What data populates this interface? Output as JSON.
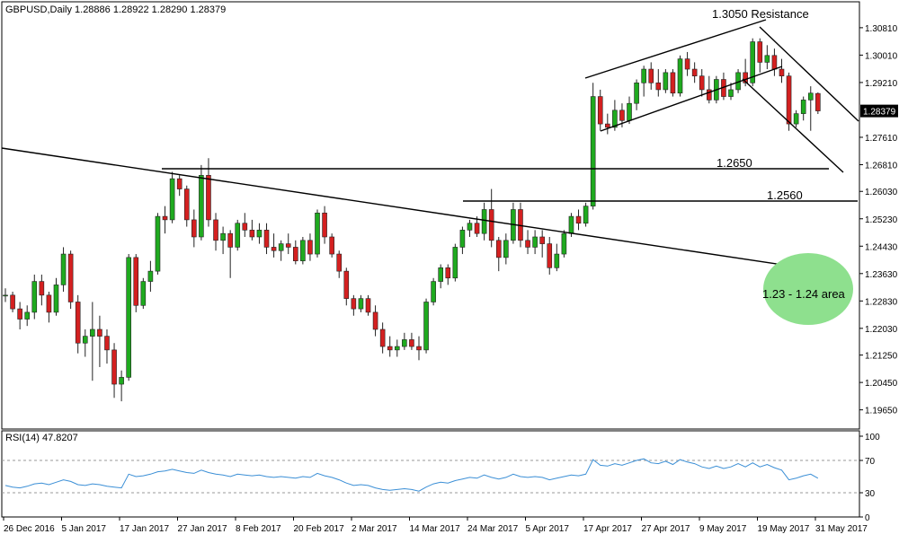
{
  "header": {
    "symbol_info": "GBPUSD,Daily  1.28886 1.28922 1.28290 1.28379",
    "rsi_info": "RSI(14) 47.8207"
  },
  "colors": {
    "bull": "#1faa1f",
    "bear": "#d42020",
    "wick": "#222222",
    "rsi_line": "#3b8fd6",
    "ellipse": "#8ee08e",
    "price_tag_bg": "#000000",
    "price_tag_fg": "#ffffff"
  },
  "chart_data": [
    {
      "type": "candlestick",
      "title": "GBPUSD,Daily",
      "ohlc_header": "1.28886 1.28922 1.28290 1.28379",
      "ylim": [
        1.193,
        1.312
      ],
      "price_ticks": [
        "1.30810",
        "1.30010",
        "1.29210",
        "1.28379",
        "1.27610",
        "1.26810",
        "1.26030",
        "1.25230",
        "1.24430",
        "1.23630",
        "1.22830",
        "1.22030",
        "1.21250",
        "1.20450",
        "1.19650"
      ],
      "current_price": "1.28379",
      "date_labels": [
        "26 Dec 2016",
        "5 Jan 2017",
        "17 Jan 2017",
        "27 Jan 2017",
        "8 Feb 2017",
        "20 Feb 2017",
        "2 Mar 2017",
        "14 Mar 2017",
        "24 Mar 2017",
        "5 Apr 2017",
        "17 Apr 2017",
        "27 Apr 2017",
        "9 May 2017",
        "19 May 2017",
        "31 May 2017"
      ],
      "candles": [
        [
          1.23,
          1.232,
          1.228,
          1.23
        ],
        [
          1.23,
          1.231,
          1.225,
          1.226
        ],
        [
          1.226,
          1.228,
          1.22,
          1.223
        ],
        [
          1.223,
          1.227,
          1.221,
          1.225
        ],
        [
          1.225,
          1.236,
          1.223,
          1.234
        ],
        [
          1.234,
          1.236,
          1.227,
          1.23
        ],
        [
          1.23,
          1.231,
          1.222,
          1.225
        ],
        [
          1.225,
          1.235,
          1.224,
          1.233
        ],
        [
          1.233,
          1.244,
          1.231,
          1.242
        ],
        [
          1.242,
          1.243,
          1.226,
          1.228
        ],
        [
          1.228,
          1.23,
          1.213,
          1.216
        ],
        [
          1.216,
          1.22,
          1.212,
          1.218
        ],
        [
          1.218,
          1.228,
          1.205,
          1.22
        ],
        [
          1.22,
          1.224,
          1.209,
          1.218
        ],
        [
          1.218,
          1.22,
          1.21,
          1.214
        ],
        [
          1.214,
          1.216,
          1.2,
          1.204
        ],
        [
          1.204,
          1.208,
          1.199,
          1.206
        ],
        [
          1.206,
          1.242,
          1.205,
          1.241
        ],
        [
          1.241,
          1.242,
          1.225,
          1.227
        ],
        [
          1.227,
          1.235,
          1.226,
          1.234
        ],
        [
          1.234,
          1.24,
          1.231,
          1.237
        ],
        [
          1.237,
          1.254,
          1.236,
          1.253
        ],
        [
          1.253,
          1.256,
          1.248,
          1.252
        ],
        [
          1.252,
          1.266,
          1.251,
          1.264
        ],
        [
          1.264,
          1.265,
          1.259,
          1.261
        ],
        [
          1.261,
          1.262,
          1.25,
          1.252
        ],
        [
          1.252,
          1.255,
          1.244,
          1.247
        ],
        [
          1.247,
          1.268,
          1.246,
          1.265
        ],
        [
          1.265,
          1.27,
          1.25,
          1.252
        ],
        [
          1.252,
          1.254,
          1.243,
          1.246
        ],
        [
          1.246,
          1.25,
          1.242,
          1.248
        ],
        [
          1.248,
          1.249,
          1.235,
          1.244
        ],
        [
          1.244,
          1.252,
          1.243,
          1.251
        ],
        [
          1.251,
          1.254,
          1.247,
          1.249
        ],
        [
          1.249,
          1.252,
          1.246,
          1.247
        ],
        [
          1.247,
          1.251,
          1.245,
          1.249
        ],
        [
          1.249,
          1.251,
          1.242,
          1.244
        ],
        [
          1.244,
          1.248,
          1.241,
          1.243
        ],
        [
          1.243,
          1.246,
          1.24,
          1.245
        ],
        [
          1.245,
          1.248,
          1.242,
          1.244
        ],
        [
          1.244,
          1.246,
          1.239,
          1.24
        ],
        [
          1.24,
          1.247,
          1.239,
          1.246
        ],
        [
          1.246,
          1.248,
          1.24,
          1.242
        ],
        [
          1.242,
          1.255,
          1.241,
          1.254
        ],
        [
          1.254,
          1.256,
          1.245,
          1.247
        ],
        [
          1.247,
          1.248,
          1.241,
          1.242
        ],
        [
          1.242,
          1.243,
          1.235,
          1.237
        ],
        [
          1.237,
          1.238,
          1.227,
          1.229
        ],
        [
          1.229,
          1.23,
          1.224,
          1.226
        ],
        [
          1.226,
          1.23,
          1.225,
          1.229
        ],
        [
          1.229,
          1.23,
          1.224,
          1.225
        ],
        [
          1.225,
          1.227,
          1.218,
          1.22
        ],
        [
          1.22,
          1.222,
          1.213,
          1.215
        ],
        [
          1.215,
          1.218,
          1.212,
          1.214
        ],
        [
          1.214,
          1.217,
          1.212,
          1.215
        ],
        [
          1.215,
          1.219,
          1.214,
          1.217
        ],
        [
          1.217,
          1.219,
          1.214,
          1.215
        ],
        [
          1.215,
          1.218,
          1.211,
          1.214
        ],
        [
          1.214,
          1.229,
          1.213,
          1.228
        ],
        [
          1.228,
          1.235,
          1.227,
          1.234
        ],
        [
          1.234,
          1.239,
          1.232,
          1.238
        ],
        [
          1.238,
          1.239,
          1.233,
          1.235
        ],
        [
          1.235,
          1.245,
          1.234,
          1.244
        ],
        [
          1.244,
          1.25,
          1.242,
          1.249
        ],
        [
          1.249,
          1.252,
          1.247,
          1.251
        ],
        [
          1.251,
          1.253,
          1.247,
          1.248
        ],
        [
          1.248,
          1.257,
          1.246,
          1.255
        ],
        [
          1.255,
          1.261,
          1.244,
          1.246
        ],
        [
          1.246,
          1.247,
          1.237,
          1.241
        ],
        [
          1.241,
          1.248,
          1.239,
          1.246
        ],
        [
          1.246,
          1.257,
          1.245,
          1.255
        ],
        [
          1.255,
          1.257,
          1.244,
          1.246
        ],
        [
          1.246,
          1.249,
          1.242,
          1.244
        ],
        [
          1.244,
          1.249,
          1.242,
          1.247
        ],
        [
          1.247,
          1.249,
          1.241,
          1.245
        ],
        [
          1.245,
          1.247,
          1.236,
          1.238
        ],
        [
          1.238,
          1.245,
          1.237,
          1.242
        ],
        [
          1.242,
          1.249,
          1.241,
          1.248
        ],
        [
          1.248,
          1.254,
          1.247,
          1.253
        ],
        [
          1.253,
          1.255,
          1.249,
          1.251
        ],
        [
          1.251,
          1.257,
          1.25,
          1.256
        ],
        [
          1.256,
          1.292,
          1.255,
          1.288
        ],
        [
          1.288,
          1.29,
          1.278,
          1.28
        ],
        [
          1.28,
          1.283,
          1.277,
          1.279
        ],
        [
          1.279,
          1.287,
          1.278,
          1.284
        ],
        [
          1.284,
          1.286,
          1.279,
          1.281
        ],
        [
          1.281,
          1.288,
          1.28,
          1.286
        ],
        [
          1.286,
          1.293,
          1.284,
          1.292
        ],
        [
          1.292,
          1.297,
          1.288,
          1.296
        ],
        [
          1.296,
          1.298,
          1.29,
          1.292
        ],
        [
          1.292,
          1.296,
          1.288,
          1.29
        ],
        [
          1.29,
          1.296,
          1.289,
          1.295
        ],
        [
          1.295,
          1.296,
          1.288,
          1.289
        ],
        [
          1.289,
          1.3,
          1.288,
          1.299
        ],
        [
          1.299,
          1.301,
          1.294,
          1.296
        ],
        [
          1.296,
          1.298,
          1.292,
          1.294
        ],
        [
          1.294,
          1.296,
          1.288,
          1.29
        ],
        [
          1.29,
          1.294,
          1.286,
          1.287
        ],
        [
          1.287,
          1.294,
          1.286,
          1.293
        ],
        [
          1.293,
          1.295,
          1.287,
          1.288
        ],
        [
          1.288,
          1.292,
          1.287,
          1.29
        ],
        [
          1.29,
          1.296,
          1.289,
          1.295
        ],
        [
          1.295,
          1.299,
          1.291,
          1.292
        ],
        [
          1.292,
          1.305,
          1.291,
          1.304
        ],
        [
          1.304,
          1.305,
          1.295,
          1.298
        ],
        [
          1.298,
          1.303,
          1.296,
          1.3
        ],
        [
          1.3,
          1.302,
          1.294,
          1.296
        ],
        [
          1.296,
          1.299,
          1.292,
          1.294
        ],
        [
          1.294,
          1.295,
          1.278,
          1.28
        ],
        [
          1.28,
          1.284,
          1.279,
          1.283
        ],
        [
          1.283,
          1.288,
          1.281,
          1.287
        ],
        [
          1.287,
          1.291,
          1.278,
          1.289
        ],
        [
          1.2889,
          1.2892,
          1.2829,
          1.2838
        ]
      ],
      "annotations": [
        {
          "text": "1.3050 Resistance",
          "price": 1.305
        },
        {
          "text": "1.2650",
          "price": 1.265
        },
        {
          "text": "1.2560",
          "price": 1.256
        },
        {
          "text": "1.23 - 1.24 area",
          "price": 1.235
        }
      ]
    },
    {
      "type": "line",
      "title": "RSI(14)",
      "value": 47.8207,
      "ylim": [
        0,
        100
      ],
      "y_ticks": [
        100,
        70,
        30,
        0
      ],
      "levels": [
        70,
        30
      ],
      "series": [
        {
          "name": "RSI(14)",
          "values": [
            39,
            37,
            36,
            38,
            41,
            42,
            40,
            43,
            46,
            44,
            40,
            39,
            41,
            40,
            38,
            37,
            36,
            53,
            50,
            51,
            53,
            56,
            57,
            59,
            57,
            55,
            54,
            58,
            55,
            53,
            52,
            50,
            53,
            52,
            51,
            52,
            50,
            49,
            50,
            49,
            48,
            50,
            49,
            54,
            51,
            49,
            46,
            42,
            39,
            40,
            39,
            36,
            34,
            33,
            34,
            35,
            34,
            32,
            37,
            41,
            43,
            42,
            45,
            47,
            49,
            48,
            52,
            49,
            47,
            49,
            53,
            50,
            49,
            50,
            49,
            46,
            48,
            50,
            52,
            51,
            53,
            71,
            64,
            63,
            66,
            64,
            67,
            70,
            72,
            67,
            66,
            69,
            65,
            71,
            68,
            66,
            62,
            60,
            63,
            60,
            62,
            66,
            62,
            67,
            62,
            65,
            61,
            58,
            46,
            48,
            51,
            53,
            48
          ]
        }
      ]
    }
  ]
}
